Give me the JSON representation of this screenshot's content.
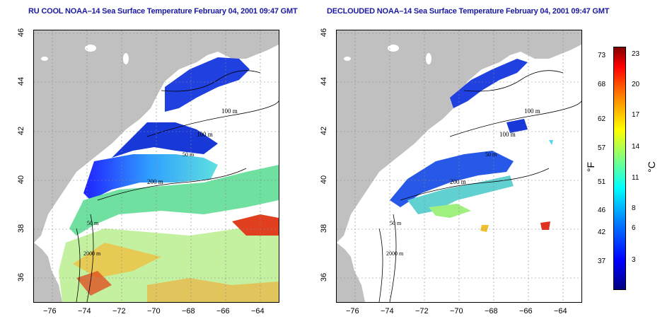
{
  "titles": {
    "left": "RU COOL NOAA–14 Sea Surface Temperature February 04, 2001 09:47 GMT",
    "right": "DECLOUDED NOAA–14 Sea Surface Temperature February 04, 2001 09:47 GMT"
  },
  "axes": {
    "x_ticks": [
      "−76",
      "−74",
      "−72",
      "−70",
      "−68",
      "−66",
      "−64"
    ],
    "y_ticks": [
      "46",
      "44",
      "42",
      "40",
      "38",
      "36"
    ]
  },
  "contour_labels": {
    "left": [
      "100 m",
      "100 m",
      "50 m",
      "200 m",
      "50 m",
      "2000 m"
    ],
    "right": [
      "100 m",
      "100 m",
      "50 m",
      "200 m",
      "50 m",
      "2000 m"
    ]
  },
  "colorbar": {
    "fahrenheit_unit": "°F",
    "celsius_unit": "°C",
    "fahrenheit_ticks": [
      "73",
      "68",
      "62",
      "57",
      "51",
      "46",
      "42",
      "37"
    ],
    "celsius_ticks": [
      "23",
      "20",
      "17",
      "14",
      "11",
      "8",
      "6",
      "3"
    ]
  },
  "colors": {
    "land": "#c0c0c0",
    "title": "#1a1aa0",
    "scale": [
      "#000080",
      "#0000ff",
      "#0080ff",
      "#00ffff",
      "#80ff80",
      "#ffff00",
      "#ff8000",
      "#ff0000",
      "#800000"
    ]
  }
}
